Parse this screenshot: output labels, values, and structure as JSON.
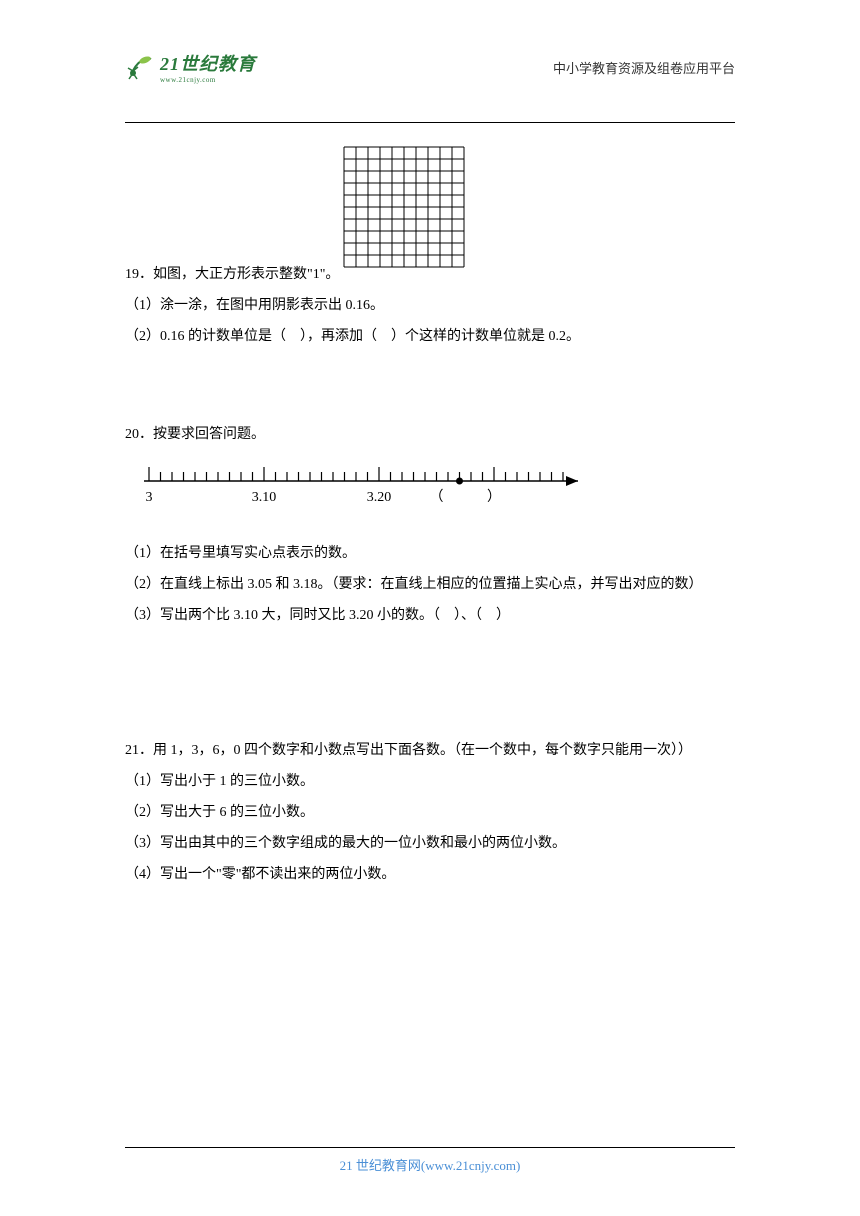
{
  "header": {
    "logo_main": "21世纪教育",
    "logo_sub": "www.21cnjy.com",
    "right_text": "中小学教育资源及组卷应用平台"
  },
  "q19": {
    "number": "19．",
    "stem": "如图，大正方形表示整数\"1\"。",
    "grid": {
      "rows": 10,
      "cols": 10,
      "cell_size": 12,
      "stroke": "#000000",
      "stroke_width": 1
    },
    "sub1": "（1）涂一涂，在图中用阴影表示出 0.16。",
    "sub2": "（2）0.16 的计数单位是（　），再添加（　）个这样的计数单位就是 0.2。"
  },
  "q20": {
    "number": "20．",
    "stem": "按要求回答问题。",
    "axis": {
      "start_label": "3",
      "mid1_label": "3.10",
      "mid2_label": "3.20",
      "paren_open": "（",
      "paren_close": "）",
      "tick_count": 36,
      "major_ticks": [
        0,
        10,
        20,
        30
      ],
      "dot_tick": 27,
      "line_color": "#000000",
      "arrow": true
    },
    "sub1": "（1）在括号里填写实心点表示的数。",
    "sub2": "（2）在直线上标出 3.05 和 3.18。（要求：在直线上相应的位置描上实心点，并写出对应的数）",
    "sub3": "（3）写出两个比 3.10 大，同时又比 3.20 小的数。（　）、（　）"
  },
  "q21": {
    "number": "21．",
    "stem": "用 1，3，6，0 四个数字和小数点写出下面各数。（在一个数中，每个数字只能用一次））",
    "sub1": "（1）写出小于 1 的三位小数。",
    "sub2": "（2）写出大于 6 的三位小数。",
    "sub3": "（3）写出由其中的三个数字组成的最大的一位小数和最小的两位小数。",
    "sub4": "（4）写出一个\"零\"都不读出来的两位小数。"
  },
  "footer": {
    "text": "21 世纪教育网(www.21cnjy.com)"
  }
}
